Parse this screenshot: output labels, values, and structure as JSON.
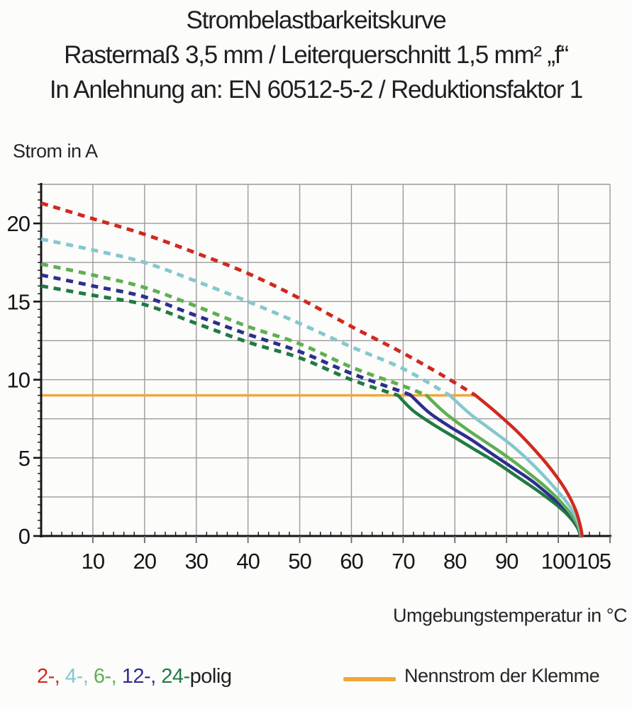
{
  "title": {
    "line1": "Strombelastbarkeitskurve",
    "line2": "Rastermaß 3,5 mm / Leiterquerschnitt 1,5 mm² „f“",
    "line3": "In Anlehnung an: EN 60512-5-2 / Reduktionsfaktor 1"
  },
  "labels": {
    "y_axis_title": "Strom in A",
    "x_axis_title": "Umgebungstemperatur in °C"
  },
  "chart_data": {
    "type": "line",
    "title": "Strombelastbarkeitskurve",
    "ylabel": "Strom in A",
    "xlabel": "Umgebungstemperatur in °C",
    "xlim": [
      0,
      110
    ],
    "ylim": [
      0,
      22.5
    ],
    "x_tick_labels": [
      10,
      20,
      30,
      40,
      50,
      60,
      70,
      80,
      90,
      100,
      105
    ],
    "y_tick_labels": [
      0,
      5,
      10,
      15,
      20
    ],
    "x_minor_step": 2,
    "y_minor_step": 0.5,
    "grid": {
      "x_step": 10,
      "y_step": 2.5,
      "color": "#9b9b9b"
    },
    "axis_color": "#161616",
    "rated_current": {
      "label": "Nennstrom der Klemme",
      "value_a": 9,
      "x_from": 0,
      "x_to": 84,
      "color": "#f2a63b"
    },
    "series": [
      {
        "name": "24-polig",
        "color": "#217a42",
        "dashed": [
          [
            0,
            16.0
          ],
          [
            10,
            15.4
          ],
          [
            20,
            14.8
          ],
          [
            30,
            13.6
          ],
          [
            40,
            12.4
          ],
          [
            50,
            11.4
          ],
          [
            60,
            10.0
          ],
          [
            69,
            9.0
          ]
        ],
        "solid": [
          [
            69,
            9.0
          ],
          [
            72,
            8.0
          ],
          [
            76,
            7.1
          ],
          [
            80,
            6.3
          ],
          [
            84,
            5.5
          ],
          [
            88,
            4.7
          ],
          [
            92,
            3.8
          ],
          [
            96,
            2.9
          ],
          [
            100,
            1.9
          ],
          [
            102.5,
            1.1
          ],
          [
            103.9,
            0.4
          ],
          [
            104.2,
            0
          ]
        ]
      },
      {
        "name": "12-polig",
        "color": "#2e2e8f",
        "dashed": [
          [
            0,
            16.7
          ],
          [
            10,
            16.0
          ],
          [
            20,
            15.3
          ],
          [
            30,
            14.1
          ],
          [
            40,
            12.9
          ],
          [
            50,
            11.8
          ],
          [
            60,
            10.4
          ],
          [
            70,
            9.2
          ],
          [
            71.5,
            9.0
          ]
        ],
        "solid": [
          [
            71.5,
            9.0
          ],
          [
            75,
            7.9
          ],
          [
            79,
            7.0
          ],
          [
            83,
            6.2
          ],
          [
            87,
            5.3
          ],
          [
            91,
            4.4
          ],
          [
            95,
            3.5
          ],
          [
            99,
            2.4
          ],
          [
            102,
            1.5
          ],
          [
            103.8,
            0.6
          ],
          [
            104.3,
            0
          ]
        ]
      },
      {
        "name": "6-polig",
        "color": "#5faf52",
        "dashed": [
          [
            0,
            17.4
          ],
          [
            10,
            16.7
          ],
          [
            20,
            15.9
          ],
          [
            30,
            14.7
          ],
          [
            40,
            13.4
          ],
          [
            50,
            12.3
          ],
          [
            60,
            10.8
          ],
          [
            70,
            9.6
          ],
          [
            74.5,
            9.0
          ]
        ],
        "solid": [
          [
            74.5,
            9.0
          ],
          [
            78,
            7.9
          ],
          [
            82,
            6.9
          ],
          [
            86,
            6.0
          ],
          [
            90,
            5.1
          ],
          [
            94,
            4.1
          ],
          [
            98,
            3.0
          ],
          [
            101.5,
            1.8
          ],
          [
            103.6,
            0.8
          ],
          [
            104.4,
            0
          ]
        ]
      },
      {
        "name": "4-polig",
        "color": "#85c7cf",
        "dashed": [
          [
            0,
            19.0
          ],
          [
            10,
            18.3
          ],
          [
            20,
            17.5
          ],
          [
            30,
            16.3
          ],
          [
            40,
            15.0
          ],
          [
            50,
            13.6
          ],
          [
            60,
            12.1
          ],
          [
            70,
            10.7
          ],
          [
            79,
            9.0
          ]
        ],
        "solid": [
          [
            79,
            9.0
          ],
          [
            83,
            7.8
          ],
          [
            87,
            6.8
          ],
          [
            91,
            5.8
          ],
          [
            95,
            4.6
          ],
          [
            99,
            3.2
          ],
          [
            102,
            2.0
          ],
          [
            103.8,
            0.9
          ],
          [
            104.5,
            0
          ]
        ]
      },
      {
        "name": "2-polig",
        "color": "#d0291f",
        "dashed": [
          [
            0,
            21.3
          ],
          [
            10,
            20.3
          ],
          [
            20,
            19.3
          ],
          [
            30,
            18.1
          ],
          [
            40,
            16.8
          ],
          [
            50,
            15.2
          ],
          [
            60,
            13.4
          ],
          [
            70,
            11.7
          ],
          [
            78,
            10.2
          ],
          [
            84,
            9.0
          ]
        ],
        "solid": [
          [
            84,
            9.0
          ],
          [
            88,
            7.9
          ],
          [
            92,
            6.7
          ],
          [
            96,
            5.3
          ],
          [
            99,
            4.1
          ],
          [
            101.5,
            2.9
          ],
          [
            103.3,
            1.7
          ],
          [
            104.3,
            0.6
          ],
          [
            104.6,
            0
          ]
        ]
      }
    ]
  },
  "legend": {
    "poles_tokens": [
      {
        "text": "2-,",
        "color": "#d0291f"
      },
      {
        "text": "4-,",
        "color": "#85c7cf"
      },
      {
        "text": "6-,",
        "color": "#5faf52"
      },
      {
        "text": "12-,",
        "color": "#2e2e8f"
      },
      {
        "text": "24-",
        "color": "#217a42"
      },
      {
        "text": "polig",
        "color": "#1f1f1f"
      }
    ],
    "rated_label": "Nennstrom der Klemme",
    "rated_color": "#f2a63b"
  }
}
